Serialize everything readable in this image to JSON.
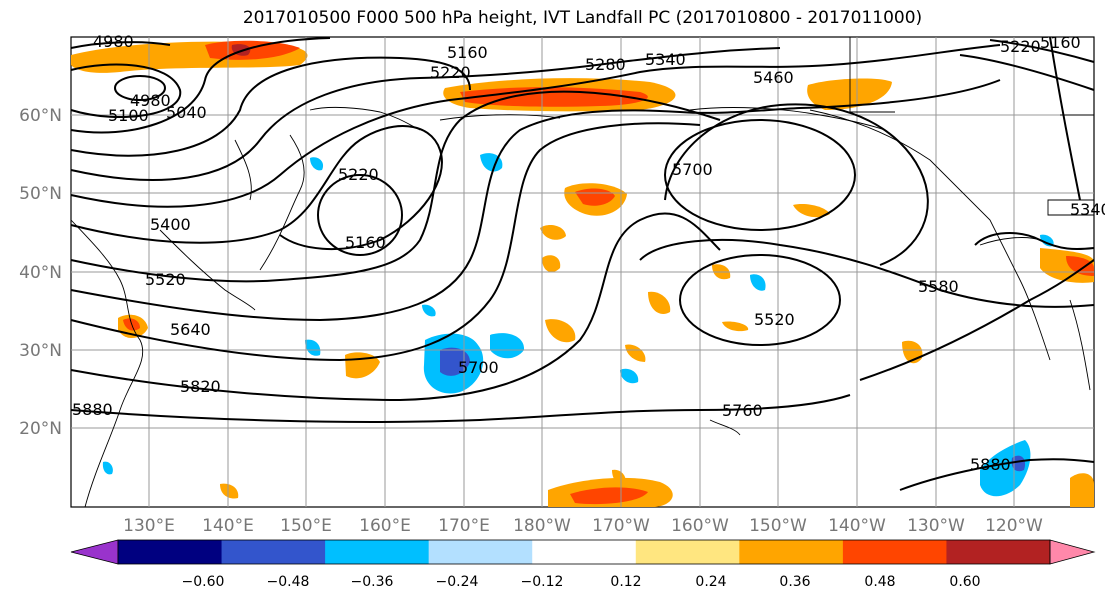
{
  "title": "2017010500 F000 500 hPa height, IVT Landfall PC (2017010800 - 2017011000)",
  "lat_labels": [
    "60°N",
    "50°N",
    "40°N",
    "30°N",
    "20°N"
  ],
  "lon_labels": [
    "130°E",
    "140°E",
    "150°E",
    "160°E",
    "170°E",
    "180°W",
    "170°W",
    "160°W",
    "150°W",
    "140°W",
    "130°W",
    "120°W"
  ],
  "contour_labels": [
    "4980",
    "5160",
    "5220",
    "5280",
    "5340",
    "5220",
    "5160",
    "4980",
    "5040",
    "5100",
    "5220",
    "5160",
    "5400",
    "5520",
    "5640",
    "5700",
    "5820",
    "5880",
    "5700",
    "5460",
    "5340",
    "5580",
    "5520",
    "5760",
    "5880"
  ],
  "colorbar": {
    "ticks": [
      "−0.60",
      "−0.48",
      "−0.36",
      "−0.24",
      "−0.12",
      "0.12",
      "0.24",
      "0.36",
      "0.48",
      "0.60"
    ],
    "colors": [
      "#9933cc",
      "#000080",
      "#3355cc",
      "#00bfff",
      "#b3e0ff",
      "#ffffff",
      "#ffe680",
      "#ffa500",
      "#ff4500",
      "#b22222",
      "#ff88aa"
    ]
  },
  "colors": {
    "ocean": "#ffffff",
    "grid": "#999999",
    "contour": "#000000",
    "positive_shade": "#ffa500",
    "negative_shade": "#00bfff"
  }
}
